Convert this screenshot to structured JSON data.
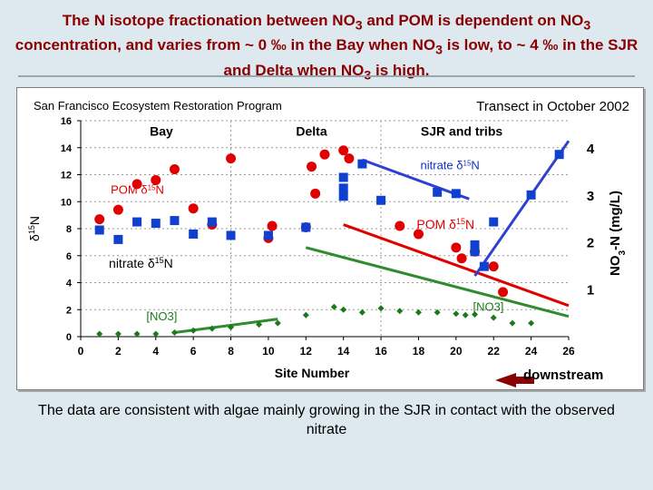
{
  "slide": {
    "title_parts": [
      "The N isotope fractionation between NO",
      "3",
      " and POM is dependent on NO",
      "3",
      " concentration, and varies from ~ 0 ‰ in the Bay when NO",
      "3",
      " is low, to ~ 4 ‰ in the SJR and Delta when NO",
      "3",
      " is high."
    ],
    "caption": "The data are consistent with algae mainly growing in the SJR in contact with the observed nitrate"
  },
  "chart_data": {
    "type": "scatter",
    "header_left": "San Francisco Ecosystem Restoration Program",
    "header_right": "Transect in October 2002",
    "xlabel": "Site Number",
    "ylabel_left_main": "δ",
    "ylabel_left_sup": "15",
    "ylabel_left_end": "N",
    "ylabel_right_main": "NO",
    "ylabel_right_sub": "3",
    "ylabel_right_end": "-N (mg/L)",
    "xlim": [
      0,
      26
    ],
    "ylim_left": [
      0,
      16
    ],
    "ylim_right": [
      0,
      4.6
    ],
    "x_ticks": [
      "0",
      "2",
      "4",
      "6",
      "8",
      "10",
      "12",
      "14",
      "16",
      "18",
      "20",
      "22",
      "24",
      "26"
    ],
    "y_ticks_left": [
      "0",
      "2",
      "4",
      "6",
      "8",
      "10",
      "12",
      "14",
      "16"
    ],
    "y_ticks_right": [
      "1",
      "2",
      "3",
      "4"
    ],
    "regions": [
      {
        "label": "Bay",
        "x": 4.3
      },
      {
        "label": "Delta",
        "x": 12.3
      },
      {
        "label": "SJR and tribs",
        "x": 20.3
      }
    ],
    "region_dividers_x": [
      8,
      16
    ],
    "direction_label": "downstream",
    "series": [
      {
        "name": "POM δ15N",
        "marker": "circle",
        "color": "#e00000",
        "points": [
          [
            1,
            8.7
          ],
          [
            2,
            9.4
          ],
          [
            3,
            11.3
          ],
          [
            4,
            11.6
          ],
          [
            5,
            12.4
          ],
          [
            6,
            9.5
          ],
          [
            7,
            8.3
          ],
          [
            8,
            13.2
          ],
          [
            10,
            7.3
          ],
          [
            10.2,
            8.2
          ],
          [
            12,
            8.1
          ],
          [
            12.5,
            10.6
          ],
          [
            12.3,
            12.6
          ],
          [
            13,
            13.5
          ],
          [
            14,
            13.8
          ],
          [
            14.3,
            13.2
          ],
          [
            17,
            8.2
          ],
          [
            18,
            7.6
          ],
          [
            20,
            6.6
          ],
          [
            20.3,
            5.8
          ],
          [
            21,
            6.3
          ],
          [
            22,
            5.2
          ],
          [
            22.5,
            3.3
          ]
        ]
      },
      {
        "name": "nitrate δ15N",
        "marker": "square",
        "color": "#1040d0",
        "points": [
          [
            1,
            7.9
          ],
          [
            2,
            7.2
          ],
          [
            3,
            8.5
          ],
          [
            4,
            8.4
          ],
          [
            5,
            8.6
          ],
          [
            6,
            7.6
          ],
          [
            7,
            8.5
          ],
          [
            8,
            7.5
          ],
          [
            10,
            7.5
          ],
          [
            12,
            8.1
          ],
          [
            14,
            10.4
          ],
          [
            14,
            11.0
          ],
          [
            14,
            11.8
          ],
          [
            15,
            12.8
          ],
          [
            16,
            10.1
          ],
          [
            19,
            10.7
          ],
          [
            20,
            10.6
          ],
          [
            21,
            6.8
          ],
          [
            21,
            6.3
          ],
          [
            21.5,
            5.2
          ],
          [
            22,
            8.5
          ],
          [
            24,
            10.5
          ],
          [
            25.5,
            13.5
          ]
        ]
      },
      {
        "name": "[NO3]",
        "marker": "diamond",
        "color": "#1a7a1a",
        "points": [
          [
            1,
            0.2
          ],
          [
            2,
            0.2
          ],
          [
            3,
            0.2
          ],
          [
            4,
            0.2
          ],
          [
            5,
            0.3
          ],
          [
            6,
            0.45
          ],
          [
            7,
            0.6
          ],
          [
            8,
            0.7
          ],
          [
            9.5,
            0.9
          ],
          [
            10.5,
            1.0
          ],
          [
            12,
            1.6
          ],
          [
            13.5,
            2.2
          ],
          [
            14,
            2.0
          ],
          [
            15,
            1.8
          ],
          [
            16,
            2.1
          ],
          [
            17,
            1.9
          ],
          [
            18,
            1.8
          ],
          [
            19,
            1.8
          ],
          [
            20,
            1.7
          ],
          [
            20.5,
            1.6
          ],
          [
            21,
            1.65
          ],
          [
            22,
            1.4
          ],
          [
            23,
            1.0
          ],
          [
            24,
            1.0
          ]
        ]
      }
    ],
    "fit_lines": [
      {
        "name": "POM fit",
        "color": "#e00000",
        "from": [
          14,
          8.3
        ],
        "to": [
          26,
          2.3
        ]
      },
      {
        "name": "SJR nitrate fit",
        "color": "#3040d0",
        "from": [
          21,
          4.5
        ],
        "to": [
          26,
          14.5
        ]
      },
      {
        "name": "Delta nitrate fit",
        "color": "#3040d0",
        "from": [
          15,
          13.1
        ],
        "to": [
          20.7,
          10.2
        ]
      },
      {
        "name": "[NO3] fit up",
        "color": "#2e8b2e",
        "from": [
          5,
          0.3
        ],
        "to": [
          10.5,
          1.3
        ]
      },
      {
        "name": "[NO3] fit down",
        "color": "#2e8b2e",
        "from": [
          12,
          6.6
        ],
        "to": [
          26,
          1.5
        ]
      }
    ],
    "annotations": [
      {
        "name": "pom-annotation",
        "text": "POM δ",
        "sup": "15",
        "end": "N",
        "x": 1.6,
        "y": 10.6,
        "color": "#e00000",
        "size": 13
      },
      {
        "name": "nitrate-annotation-top",
        "text": "nitrate δ",
        "sup": "15",
        "end": "N",
        "x": 18.1,
        "y": 12.4,
        "color": "#1030c0",
        "size": 13
      },
      {
        "name": "pom-annotation-mid",
        "text": "POM δ",
        "sup": "15",
        "end": "N",
        "x": 17.9,
        "y": 8.0,
        "color": "#e00000",
        "size": 14
      },
      {
        "name": "nitrate-annotation-mid",
        "text": "nitrate δ",
        "sup": "15",
        "end": "N",
        "x": 1.5,
        "y": 5.1,
        "color": "#000000",
        "size": 14
      },
      {
        "name": "no3-annotation-left",
        "text": "[NO3]",
        "sup": "",
        "end": "",
        "x": 3.5,
        "y": 1.2,
        "color": "#1a7a1a",
        "size": 13
      },
      {
        "name": "no3-annotation-right",
        "text": "[NO3]",
        "sup": "",
        "end": "",
        "x": 20.9,
        "y": 1.9,
        "color": "#1a7a1a",
        "size": 13
      }
    ]
  }
}
